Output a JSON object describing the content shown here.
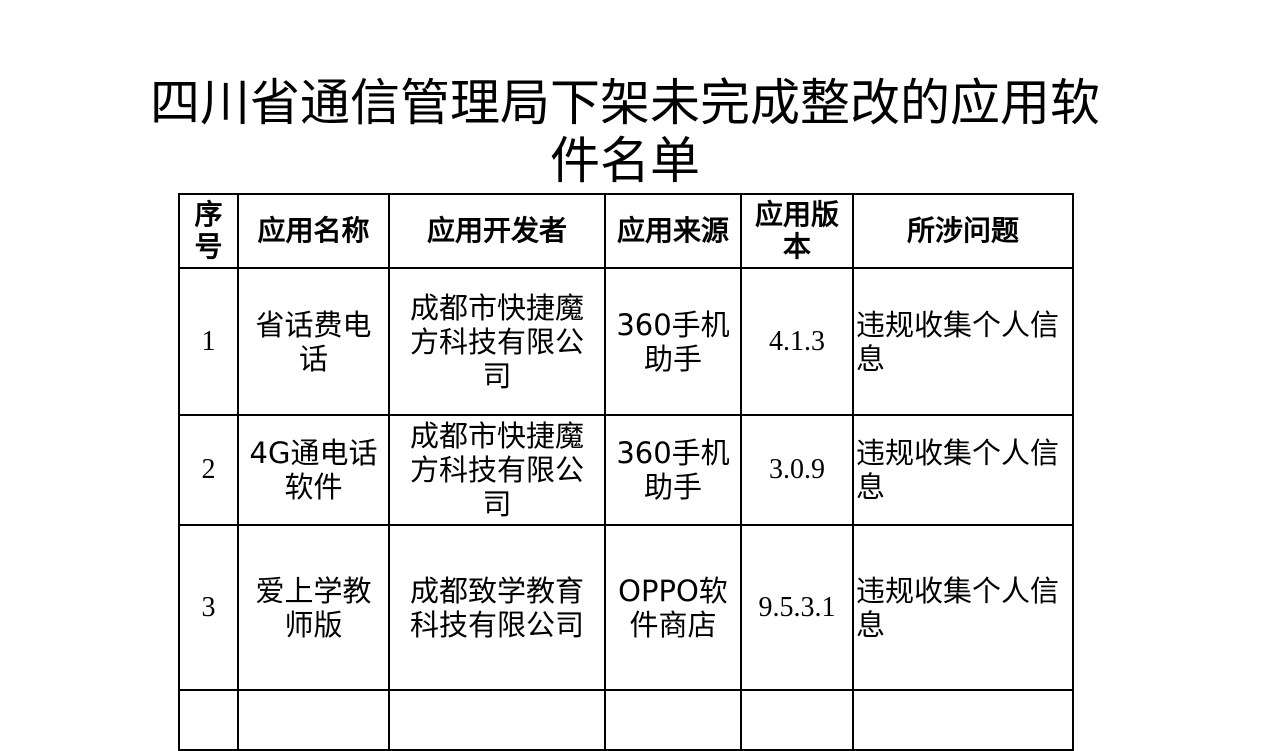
{
  "title": "四川省通信管理局下架未完成整改的应用软件名单",
  "headers": [
    "序号",
    "应用名称",
    "应用开发者",
    "应用来源",
    "应用版本",
    "所涉问题"
  ],
  "rows": [
    {
      "no": "1",
      "name": "省话费电话",
      "developer": "成都市快捷魔方科技有限公司",
      "source": "360手机助手",
      "version": "4.1.3",
      "issue": "违规收集个人信息"
    },
    {
      "no": "2",
      "name": "4G通电话软件",
      "developer": "成都市快捷魔方科技有限公司",
      "source": "360手机助手",
      "version": "3.0.9",
      "issue": "违规收集个人信息"
    },
    {
      "no": "3",
      "name": "爱上学教师版",
      "developer": "成都致学教育科技有限公司",
      "source": "OPPO软件商店",
      "version": "9.5.3.1",
      "issue": "违规收集个人信息"
    }
  ]
}
